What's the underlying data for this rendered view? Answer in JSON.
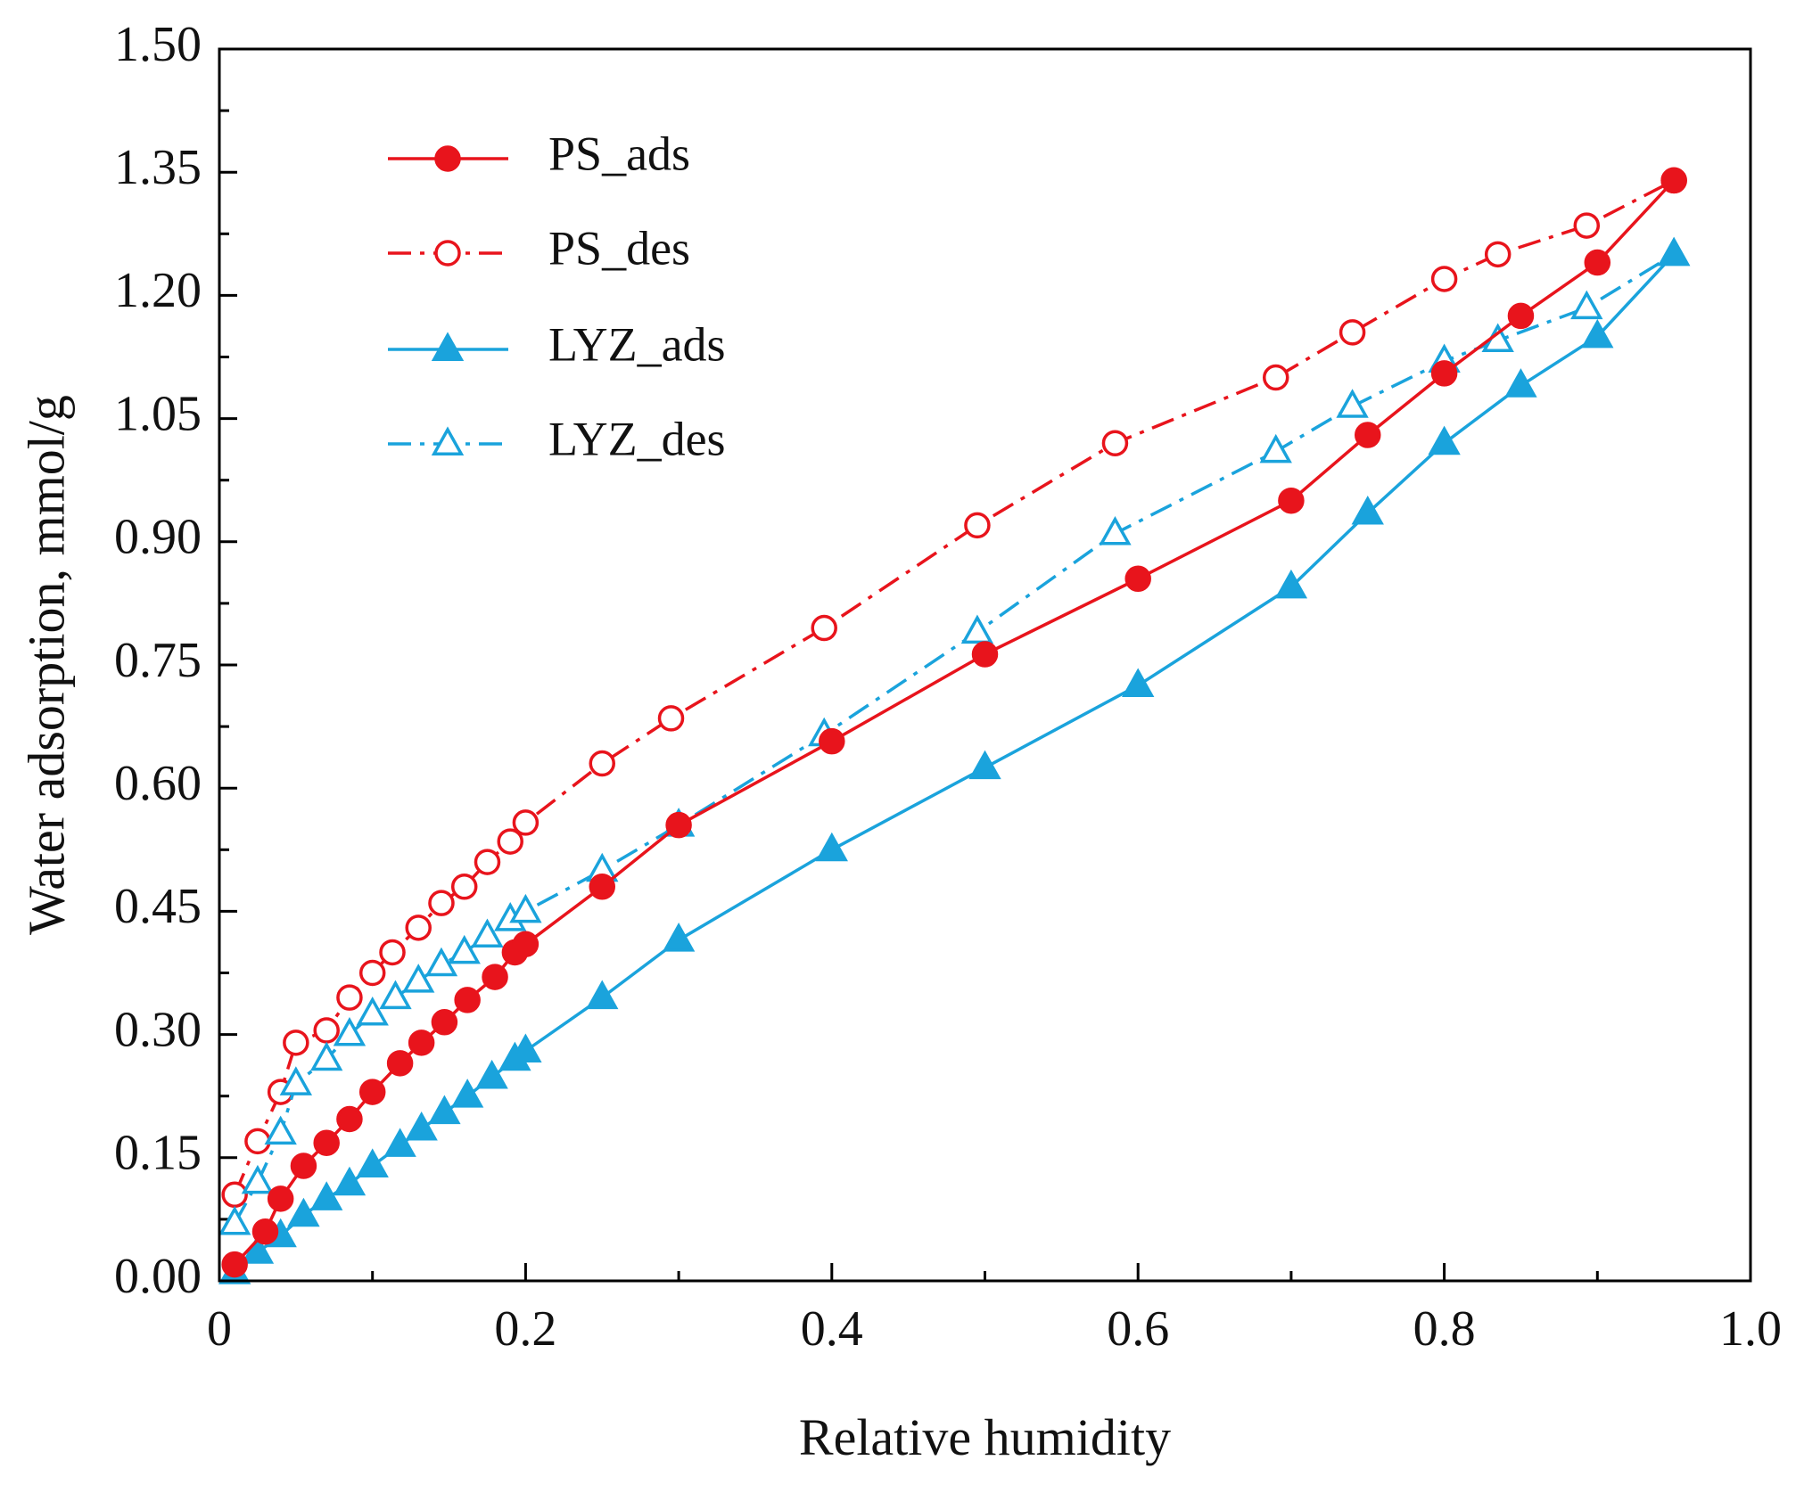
{
  "chart_data": {
    "type": "line",
    "title": "",
    "xlabel": "Relative humidity",
    "ylabel": "Water adsorption, mmol/g",
    "xlim": [
      0,
      1.0
    ],
    "ylim": [
      0,
      1.5
    ],
    "xticks": [
      0,
      0.2,
      0.4,
      0.6,
      0.8,
      1.0
    ],
    "xtick_labels": [
      "0",
      "0.2",
      "0.4",
      "0.6",
      "0.8",
      "1.0"
    ],
    "yticks": [
      0,
      0.15,
      0.3,
      0.45,
      0.6,
      0.75,
      0.9,
      1.05,
      1.2,
      1.35,
      1.5
    ],
    "ytick_labels": [
      "0.00",
      "0.15",
      "0.30",
      "0.45",
      "0.60",
      "0.75",
      "0.90",
      "1.05",
      "1.20",
      "1.35",
      "1.50"
    ],
    "grid": false,
    "legend_position": "top-left",
    "series": [
      {
        "name": "PS_ads",
        "color": "#e8141c",
        "marker": "circle",
        "filled": true,
        "linestyle": "solid",
        "x": [
          0.01,
          0.03,
          0.04,
          0.055,
          0.07,
          0.085,
          0.1,
          0.118,
          0.132,
          0.147,
          0.162,
          0.18,
          0.193,
          0.2,
          0.25,
          0.3,
          0.4,
          0.5,
          0.6,
          0.7,
          0.75,
          0.8,
          0.85,
          0.9,
          0.95
        ],
        "y": [
          0.02,
          0.06,
          0.1,
          0.14,
          0.168,
          0.197,
          0.23,
          0.265,
          0.29,
          0.315,
          0.342,
          0.37,
          0.4,
          0.41,
          0.48,
          0.555,
          0.657,
          0.763,
          0.855,
          0.95,
          1.03,
          1.105,
          1.175,
          1.24,
          1.34
        ]
      },
      {
        "name": "PS_des",
        "color": "#e8141c",
        "marker": "circle",
        "filled": false,
        "linestyle": "dashdot",
        "x": [
          0.01,
          0.025,
          0.04,
          0.05,
          0.07,
          0.085,
          0.1,
          0.113,
          0.13,
          0.145,
          0.16,
          0.175,
          0.19,
          0.2,
          0.25,
          0.295,
          0.395,
          0.495,
          0.585,
          0.69,
          0.74,
          0.8,
          0.835,
          0.893,
          0.95
        ],
        "y": [
          0.105,
          0.17,
          0.23,
          0.29,
          0.305,
          0.345,
          0.375,
          0.4,
          0.43,
          0.46,
          0.48,
          0.51,
          0.535,
          0.558,
          0.63,
          0.685,
          0.795,
          0.92,
          1.02,
          1.1,
          1.155,
          1.22,
          1.25,
          1.285,
          1.34
        ]
      },
      {
        "name": "LYZ_ads",
        "color": "#1aa3dc",
        "marker": "triangle",
        "filled": true,
        "linestyle": "solid",
        "x": [
          0.01,
          0.025,
          0.04,
          0.055,
          0.07,
          0.085,
          0.1,
          0.118,
          0.132,
          0.147,
          0.162,
          0.178,
          0.193,
          0.2,
          0.25,
          0.3,
          0.4,
          0.5,
          0.6,
          0.7,
          0.75,
          0.8,
          0.85,
          0.9,
          0.95
        ],
        "y": [
          0.01,
          0.035,
          0.055,
          0.08,
          0.1,
          0.118,
          0.14,
          0.165,
          0.185,
          0.205,
          0.225,
          0.248,
          0.27,
          0.28,
          0.345,
          0.415,
          0.525,
          0.625,
          0.725,
          0.845,
          0.935,
          1.02,
          1.09,
          1.15,
          1.25
        ]
      },
      {
        "name": "LYZ_des",
        "color": "#1aa3dc",
        "marker": "triangle",
        "filled": false,
        "linestyle": "dashdot",
        "x": [
          0.01,
          0.025,
          0.04,
          0.05,
          0.07,
          0.085,
          0.1,
          0.115,
          0.13,
          0.145,
          0.16,
          0.175,
          0.19,
          0.2,
          0.25,
          0.3,
          0.395,
          0.495,
          0.585,
          0.69,
          0.74,
          0.8,
          0.835,
          0.893,
          0.95
        ],
        "y": [
          0.07,
          0.12,
          0.18,
          0.24,
          0.27,
          0.3,
          0.325,
          0.345,
          0.365,
          0.385,
          0.4,
          0.42,
          0.44,
          0.45,
          0.5,
          0.555,
          0.665,
          0.79,
          0.91,
          1.01,
          1.065,
          1.12,
          1.145,
          1.185,
          1.25
        ]
      }
    ]
  }
}
